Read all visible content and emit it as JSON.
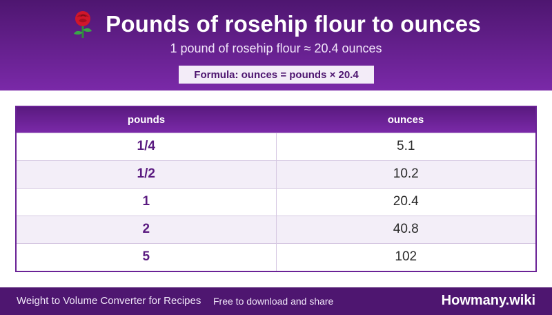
{
  "header": {
    "title": "Pounds of rosehip flour to ounces",
    "icon": "rose-icon",
    "subtitle": "1 pound of rosehip flour ≈ 20.4 ounces",
    "formula": "Formula: ounces = pounds × 20.4"
  },
  "table": {
    "columns": [
      "pounds",
      "ounces"
    ],
    "rows": [
      {
        "pounds": "1/4",
        "ounces": "5.1"
      },
      {
        "pounds": "1/2",
        "ounces": "10.2"
      },
      {
        "pounds": "1",
        "ounces": "20.4"
      },
      {
        "pounds": "2",
        "ounces": "40.8"
      },
      {
        "pounds": "5",
        "ounces": "102"
      }
    ]
  },
  "footer": {
    "left": "Weight to Volume Converter for Recipes",
    "middle": "Free to download and share",
    "brand": "Howmany.wiki"
  },
  "colors": {
    "header_dark": "#4e1670",
    "header_light": "#7a29a8",
    "accent_text": "#5a1a80"
  }
}
